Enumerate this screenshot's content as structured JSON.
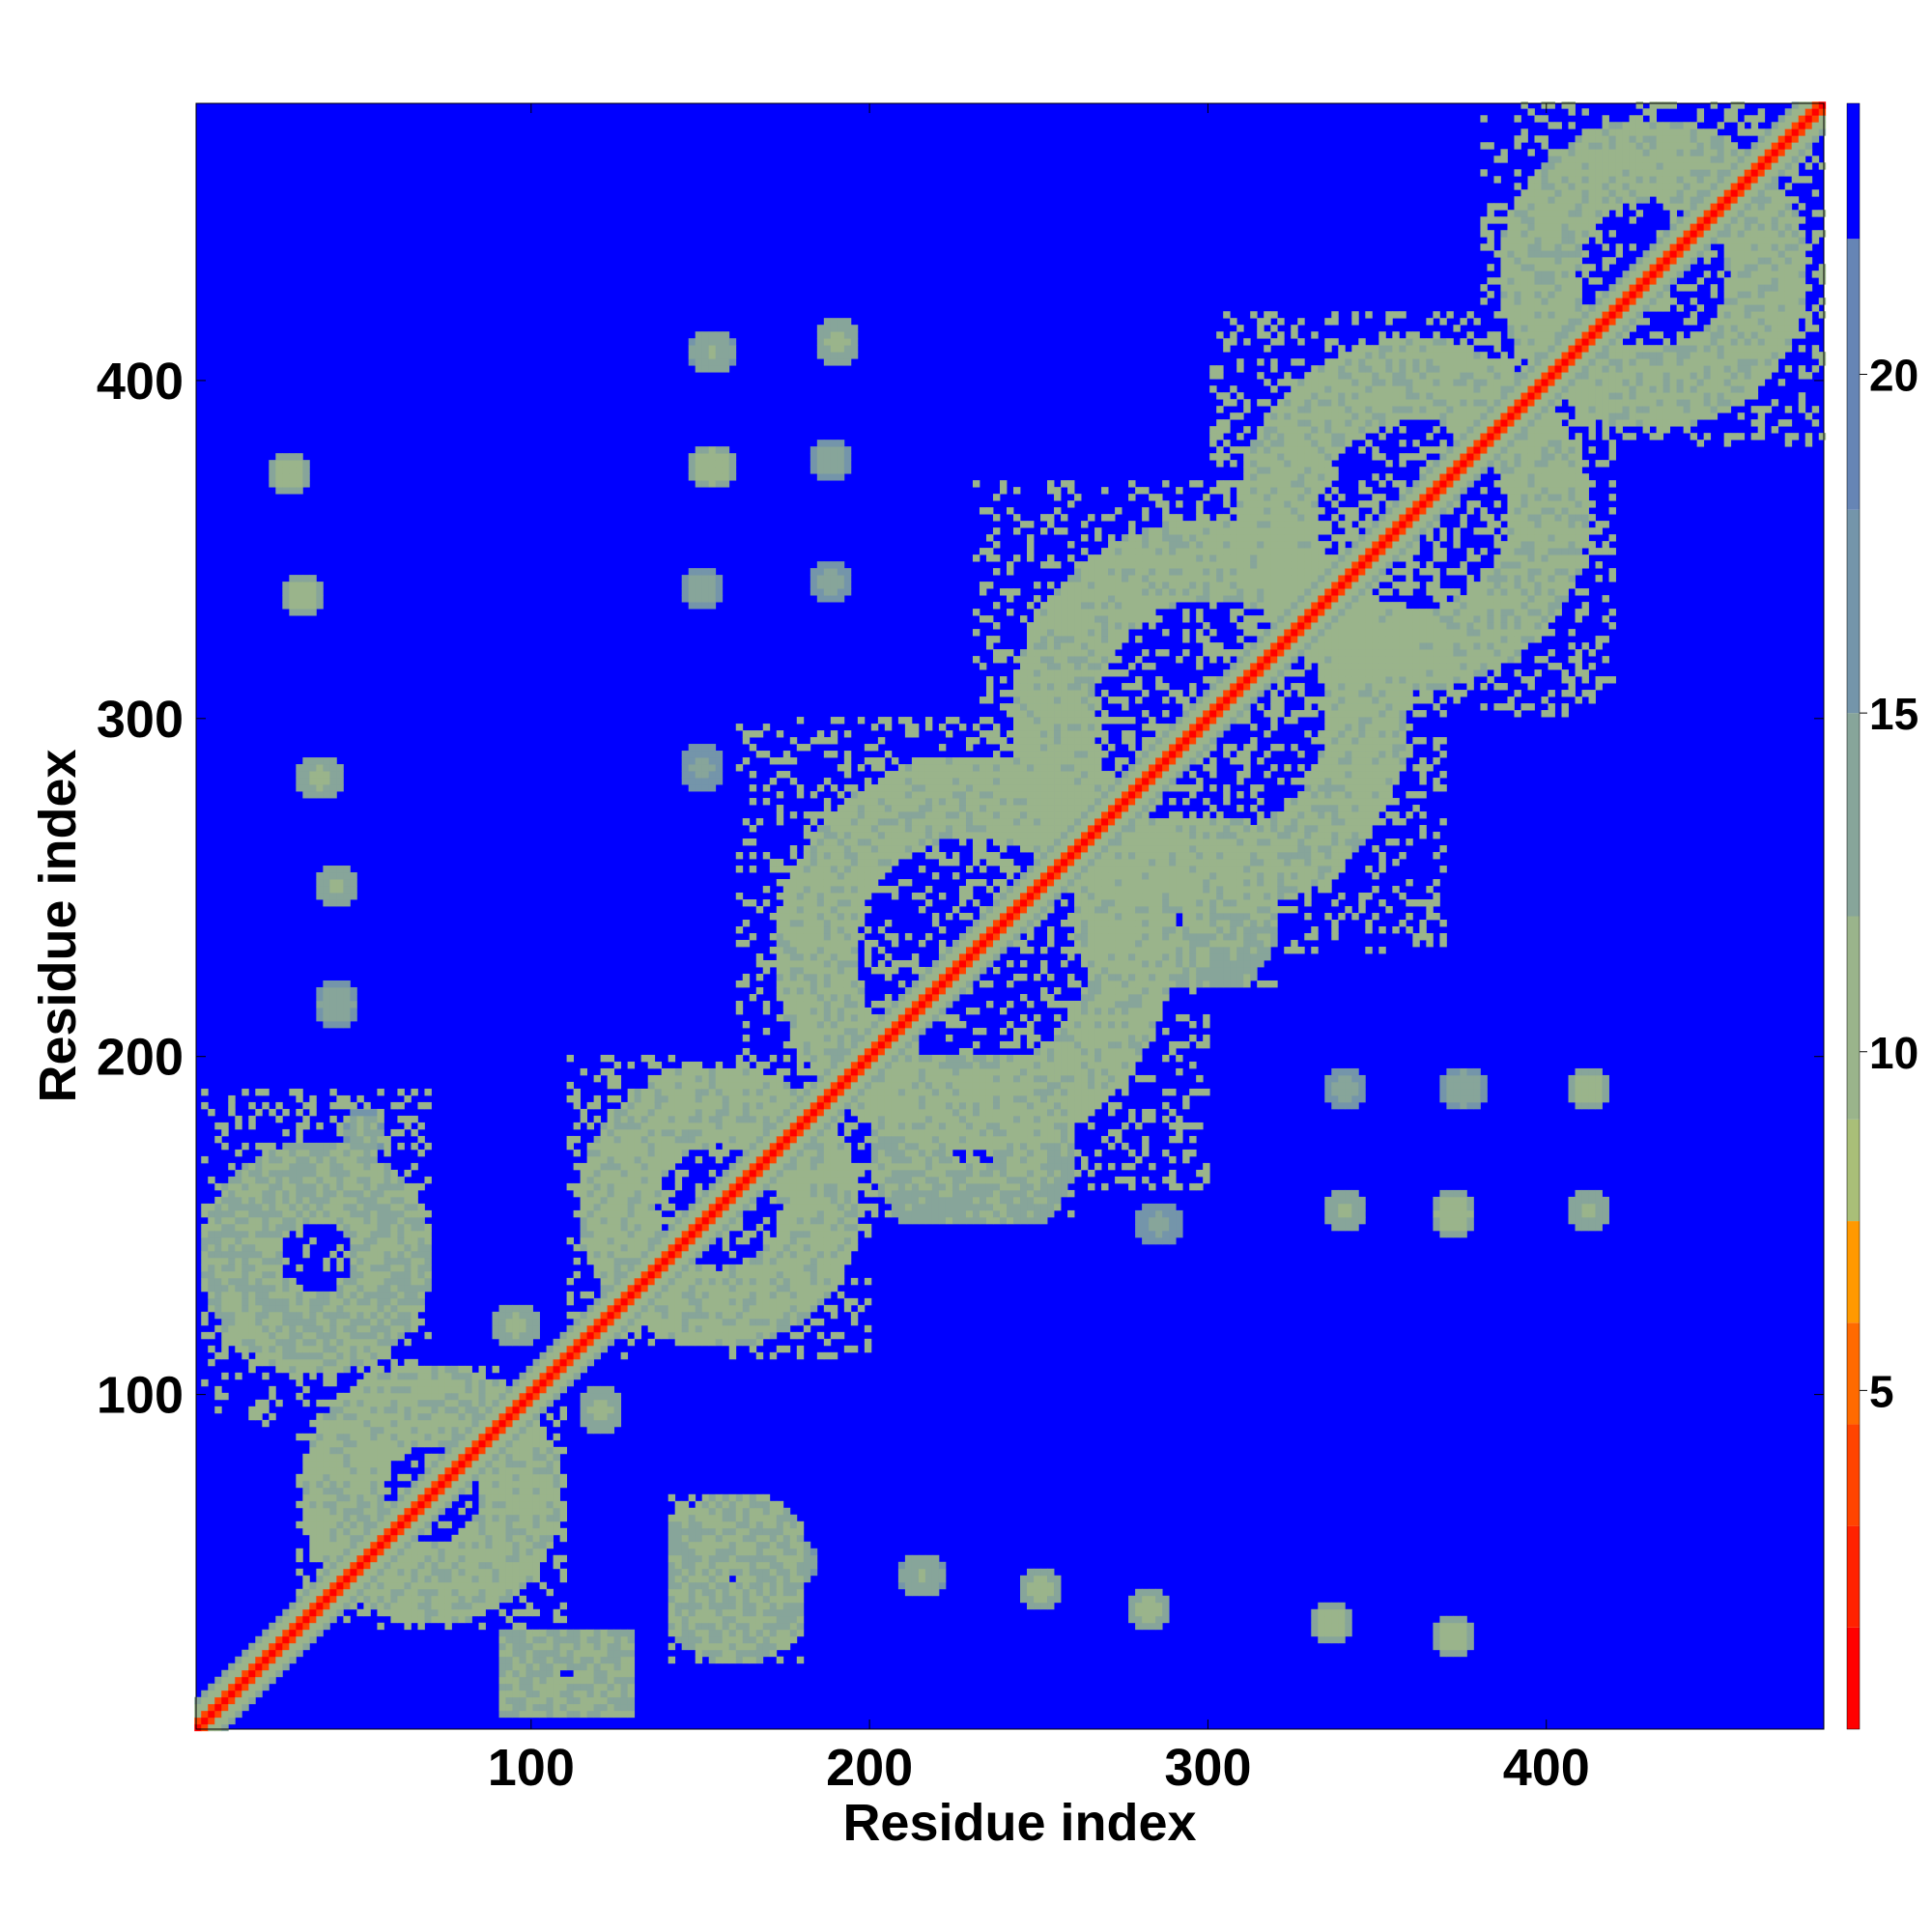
{
  "chart_data": {
    "type": "heatmap",
    "title": "",
    "xlabel": "Residue index",
    "ylabel": "Residue index",
    "n_residues": 482,
    "xlim": [
      1,
      482
    ],
    "ylim": [
      1,
      482
    ],
    "xticks": [
      100,
      200,
      300,
      400
    ],
    "yticks": [
      100,
      200,
      300,
      400
    ],
    "colorbar": {
      "range": [
        0,
        24
      ],
      "ticks": [
        5,
        10,
        15,
        20
      ],
      "bins": [
        {
          "max": 1.5,
          "color": "#ff0000"
        },
        {
          "max": 3.0,
          "color": "#ff2200"
        },
        {
          "max": 4.5,
          "color": "#ff4400"
        },
        {
          "max": 6.0,
          "color": "#ff6a00"
        },
        {
          "max": 7.5,
          "color": "#ff9900"
        },
        {
          "max": 9.0,
          "color": "#a9bf78"
        },
        {
          "max": 12.0,
          "color": "#9ab48b"
        },
        {
          "max": 15.0,
          "color": "#87a59a"
        },
        {
          "max": 18.0,
          "color": "#7495aa"
        },
        {
          "max": 22.0,
          "color": "#6685b5"
        },
        {
          "max": 24.0,
          "color": "#0000ff"
        }
      ]
    },
    "background_value": 24,
    "diagonal_band": {
      "core_value": 1,
      "inner_width": 3,
      "outer_width": 9
    },
    "blocks": [
      {
        "x": [
          110,
          200
        ],
        "y": [
          110,
          200
        ],
        "value": 11
      },
      {
        "x": [
          30,
          110
        ],
        "y": [
          30,
          110
        ],
        "value": 11
      },
      {
        "x": [
          160,
          300
        ],
        "y": [
          160,
          300
        ],
        "value": 11
      },
      {
        "x": [
          230,
          370
        ],
        "y": [
          230,
          370
        ],
        "value": 11
      },
      {
        "x": [
          300,
          420
        ],
        "y": [
          300,
          420
        ],
        "value": 11
      },
      {
        "x": [
          380,
          482
        ],
        "y": [
          380,
          482
        ],
        "value": 11
      },
      {
        "x": [
          2,
          70
        ],
        "y": [
          90,
          190
        ],
        "value": 12
      },
      {
        "x": [
          140,
          180
        ],
        "y": [
          20,
          70
        ],
        "value": 12
      },
      {
        "x": [
          90,
          130
        ],
        "y": [
          5,
          30
        ],
        "value": 12
      },
      {
        "x": [
          200,
          260
        ],
        "y": [
          150,
          200
        ],
        "value": 13
      },
      {
        "x": [
          260,
          320
        ],
        "y": [
          220,
          270
        ],
        "value": 13
      }
    ],
    "contact_spots": [
      {
        "x": 28,
        "y": 372,
        "value": 9
      },
      {
        "x": 32,
        "y": 336,
        "value": 9
      },
      {
        "x": 37,
        "y": 282,
        "value": 10
      },
      {
        "x": 42,
        "y": 250,
        "value": 11
      },
      {
        "x": 42,
        "y": 215,
        "value": 12
      },
      {
        "x": 50,
        "y": 177,
        "value": 12
      },
      {
        "x": 153,
        "y": 408,
        "value": 11
      },
      {
        "x": 190,
        "y": 411,
        "value": 10
      },
      {
        "x": 153,
        "y": 374,
        "value": 9
      },
      {
        "x": 188,
        "y": 376,
        "value": 12
      },
      {
        "x": 150,
        "y": 338,
        "value": 12
      },
      {
        "x": 188,
        "y": 340,
        "value": 13
      },
      {
        "x": 150,
        "y": 285,
        "value": 13
      },
      {
        "x": 412,
        "y": 190,
        "value": 9
      },
      {
        "x": 372,
        "y": 153,
        "value": 9
      },
      {
        "x": 340,
        "y": 154,
        "value": 11
      },
      {
        "x": 412,
        "y": 154,
        "value": 11
      },
      {
        "x": 375,
        "y": 190,
        "value": 12
      },
      {
        "x": 340,
        "y": 190,
        "value": 13
      },
      {
        "x": 285,
        "y": 150,
        "value": 13
      },
      {
        "x": 372,
        "y": 28,
        "value": 9
      },
      {
        "x": 336,
        "y": 32,
        "value": 9
      },
      {
        "x": 282,
        "y": 36,
        "value": 10
      },
      {
        "x": 250,
        "y": 42,
        "value": 10
      },
      {
        "x": 215,
        "y": 46,
        "value": 11
      },
      {
        "x": 177,
        "y": 50,
        "value": 11
      },
      {
        "x": 95,
        "y": 120,
        "value": 10
      },
      {
        "x": 120,
        "y": 95,
        "value": 10
      }
    ]
  }
}
